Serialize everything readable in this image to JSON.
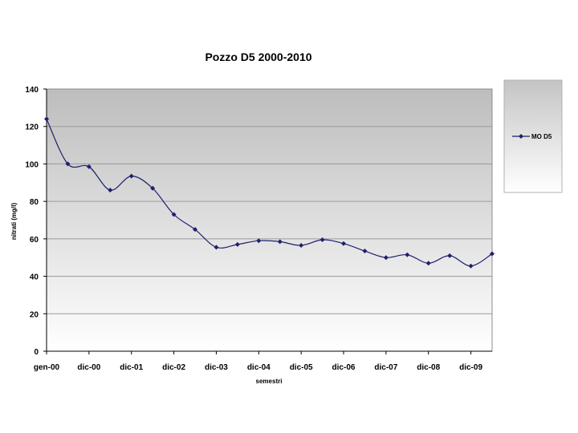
{
  "chart_data": {
    "type": "line",
    "title": "Pozzo D5 2000-2010",
    "xlabel": "semestri",
    "ylabel": "nitrati (mg/l)",
    "ylim": [
      0,
      140
    ],
    "yticks": [
      0,
      20,
      40,
      60,
      80,
      100,
      120,
      140
    ],
    "xtick_labels": [
      "gen-00",
      "dic-00",
      "dic-01",
      "dic-02",
      "dic-03",
      "dic-04",
      "dic-05",
      "dic-06",
      "dic-07",
      "dic-08",
      "dic-09"
    ],
    "grid": true,
    "legend_position": "right",
    "series": [
      {
        "name": "MO D5",
        "color": "#1f1f6e",
        "values": [
          124,
          100,
          98.5,
          86,
          93.5,
          87,
          73,
          65,
          55.5,
          57,
          59,
          58.5,
          56.5,
          59.5,
          57.5,
          53.5,
          50,
          51.5,
          47,
          51,
          45.5,
          52
        ]
      }
    ]
  }
}
